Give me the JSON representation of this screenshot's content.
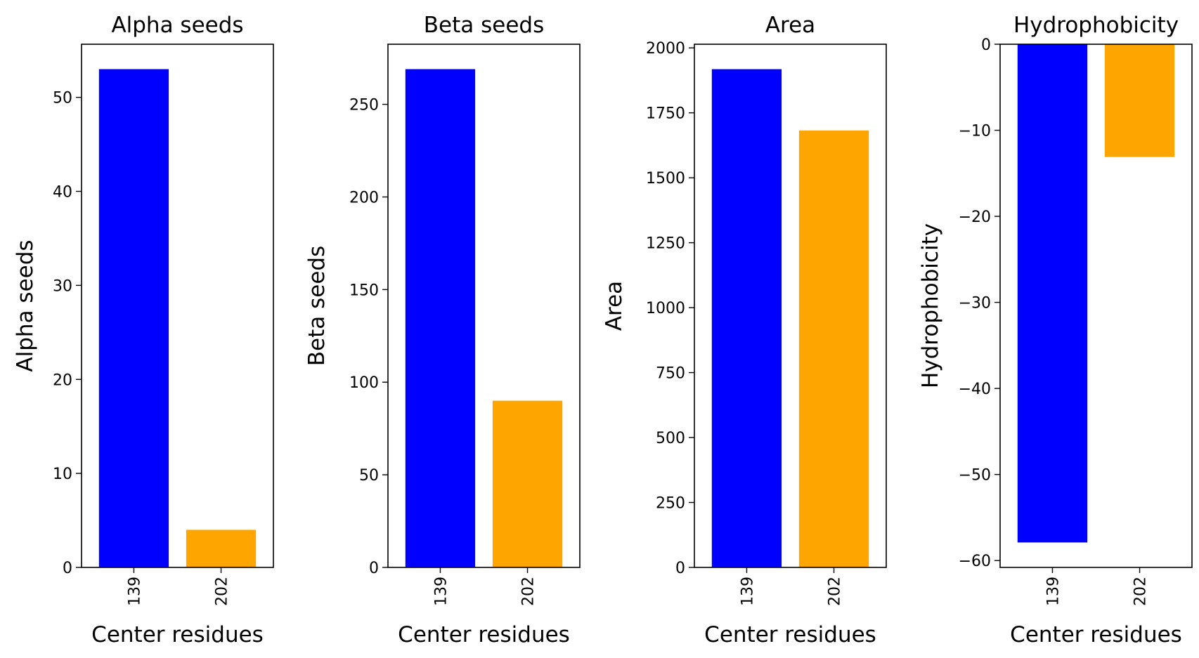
{
  "chart_data": [
    {
      "type": "bar",
      "title": "Alpha seeds",
      "xlabel": "Center residues",
      "ylabel": "Alpha seeds",
      "categories": [
        "139",
        "202"
      ],
      "values": [
        53,
        4
      ],
      "colors": [
        "#0000ff",
        "#ffa500"
      ],
      "ylim": [
        0,
        55.65
      ],
      "yticks": [
        0,
        10,
        20,
        30,
        40,
        50
      ],
      "ytick_labels": [
        "0",
        "10",
        "20",
        "30",
        "40",
        "50"
      ],
      "grid": false
    },
    {
      "type": "bar",
      "title": "Beta seeds",
      "xlabel": "Center residues",
      "ylabel": "Beta seeds",
      "categories": [
        "139",
        "202"
      ],
      "values": [
        269,
        90
      ],
      "colors": [
        "#0000ff",
        "#ffa500"
      ],
      "ylim": [
        0,
        282.45
      ],
      "yticks": [
        0,
        50,
        100,
        150,
        200,
        250
      ],
      "ytick_labels": [
        "0",
        "50",
        "100",
        "150",
        "200",
        "250"
      ],
      "grid": false
    },
    {
      "type": "bar",
      "title": "Area",
      "xlabel": "Center residues",
      "ylabel": "Area",
      "categories": [
        "139",
        "202"
      ],
      "values": [
        1918,
        1682
      ],
      "colors": [
        "#0000ff",
        "#ffa500"
      ],
      "ylim": [
        0,
        2014
      ],
      "yticks": [
        0,
        250,
        500,
        750,
        1000,
        1250,
        1500,
        1750,
        2000
      ],
      "ytick_labels": [
        "0",
        "250",
        "500",
        "750",
        "1000",
        "1250",
        "1500",
        "1750",
        "2000"
      ],
      "grid": false
    },
    {
      "type": "bar",
      "title": "Hydrophobicity",
      "xlabel": "Center residues",
      "ylabel": "Hydrophobicity",
      "categories": [
        "139",
        "202"
      ],
      "values": [
        -57.9,
        -13.1
      ],
      "colors": [
        "#0000ff",
        "#ffa500"
      ],
      "ylim": [
        -60.8,
        0
      ],
      "yticks": [
        0,
        -10,
        -20,
        -30,
        -40,
        -50,
        -60
      ],
      "ytick_labels": [
        "0",
        "−10",
        "−20",
        "−30",
        "−40",
        "−50",
        "−60"
      ],
      "grid": false
    }
  ]
}
